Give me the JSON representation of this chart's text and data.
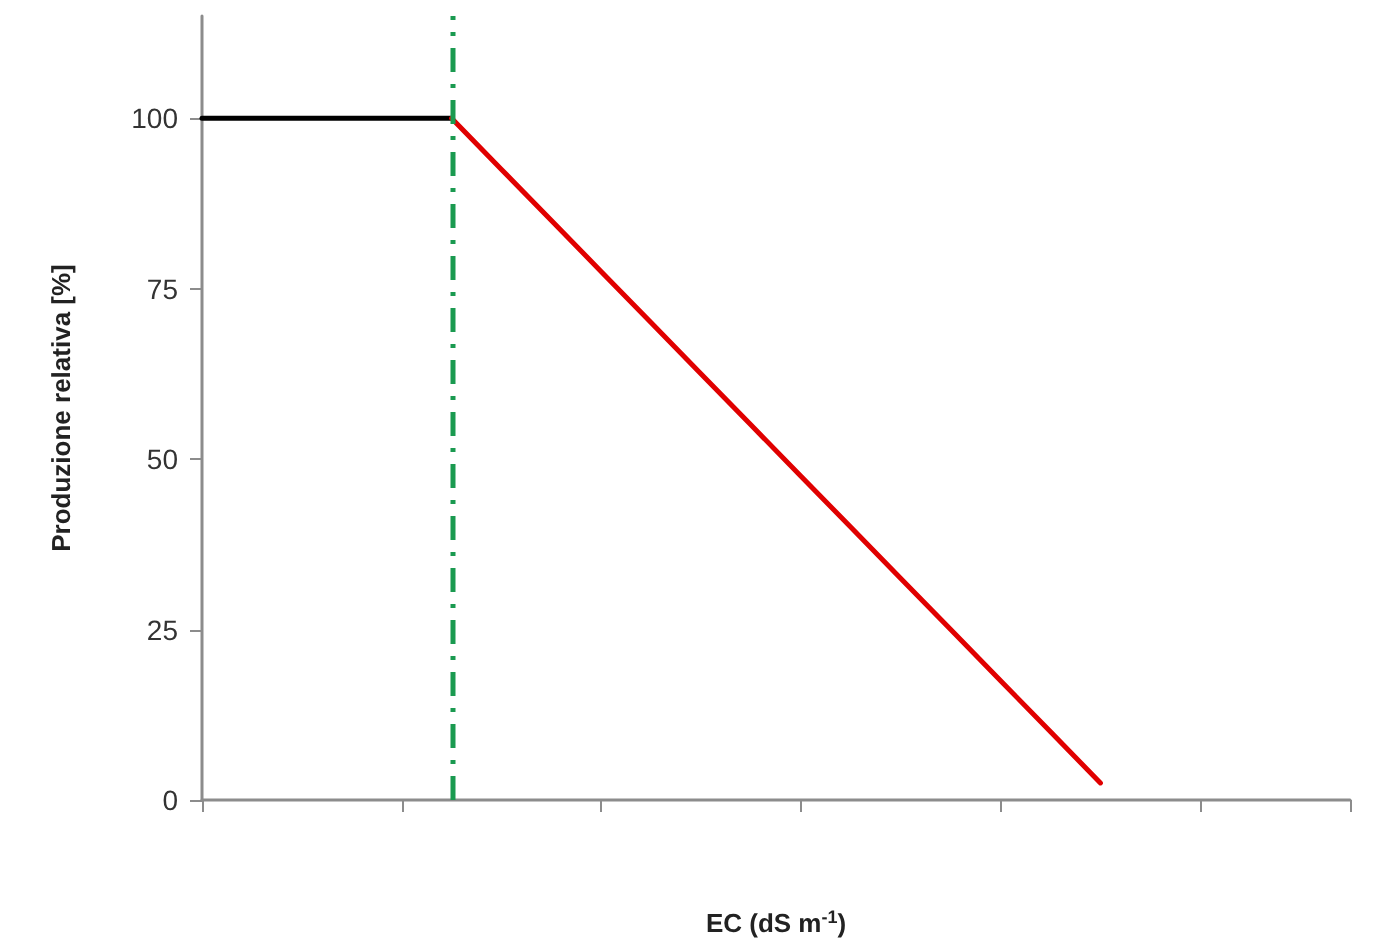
{
  "chart_data": {
    "type": "line",
    "xlabel": "EC (dS m$^{-1}$)",
    "ylabel": "Produzione relativa [%]",
    "categories": [
      null,
      null,
      null,
      null,
      null,
      null,
      null,
      null,
      null,
      null,
      null,
      null,
      null,
      null,
      null,
      null,
      null,
      null,
      null,
      null,
      null,
      null,
      null,
      null
    ],
    "ylim": [
      0,
      115
    ],
    "yticks": [
      0,
      25,
      50,
      75,
      100
    ],
    "tick_labels": "y",
    "marker": "none",
    "line_style": "solid",
    "series": [
      {
        "color": "#000000",
        "values": [
          100,
          100,
          100,
          100,
          100,
          100,
          null,
          null,
          null,
          null,
          null,
          null,
          null,
          null,
          null,
          null,
          null,
          null,
          null,
          null,
          null,
          null,
          null,
          null
        ]
      },
      {
        "color": "#e00000",
        "values": [
          null,
          null,
          null,
          null,
          null,
          100,
          92.5,
          85,
          77.5,
          70,
          62.5,
          55,
          47.5,
          40,
          32.5,
          25,
          17.5,
          10,
          2.5,
          null,
          null,
          null,
          null,
          null
        ]
      }
    ]
  }
}
